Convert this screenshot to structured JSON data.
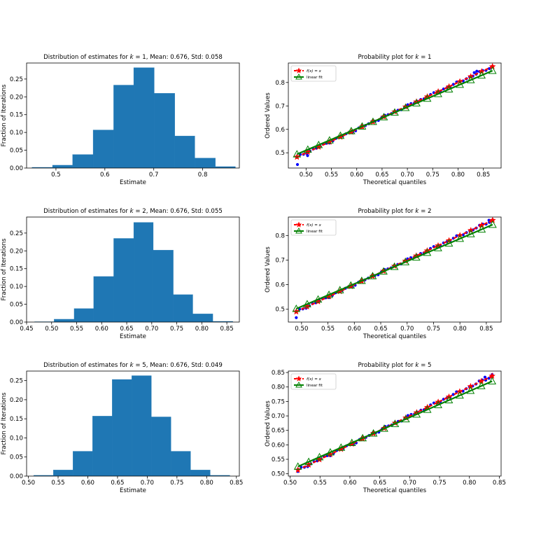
{
  "chart_data": [
    {
      "type": "bar",
      "title": "Distribution of estimates for k = 1, Mean: 0.676, Std: 0.058",
      "title_pre": "Distribution of estimates for ",
      "title_k": "k",
      "title_post": " = 1, Mean: 0.676, Std: 0.058",
      "xlabel": "Estimate",
      "ylabel": "Fraction of Iterations",
      "xlim": [
        0.44,
        0.875
      ],
      "ylim": [
        0,
        0.295
      ],
      "xticks": [
        0.5,
        0.6,
        0.7,
        0.8
      ],
      "xtick_labels": [
        "0.5",
        "0.6",
        "0.7",
        "0.8"
      ],
      "yticks": [
        0,
        0.05,
        0.1,
        0.15,
        0.2,
        0.25
      ],
      "ytick_labels": [
        "0.00",
        "0.05",
        "0.10",
        "0.15",
        "0.20",
        "0.25"
      ],
      "bin_edges": [
        0.451,
        0.493,
        0.534,
        0.576,
        0.618,
        0.659,
        0.701,
        0.743,
        0.784,
        0.826,
        0.867
      ],
      "values": [
        0.002,
        0.008,
        0.038,
        0.107,
        0.233,
        0.282,
        0.21,
        0.09,
        0.028,
        0.004
      ],
      "color": "#1f77b4"
    },
    {
      "type": "scatter",
      "title": "Probability plot for k = 1",
      "title_pre": "Probability plot for ",
      "title_k": "k",
      "title_post": " = 1",
      "xlabel": "Theoretical quantiles",
      "ylabel": "Ordered Values",
      "xlim": [
        0.465,
        0.885
      ],
      "ylim": [
        0.435,
        0.883
      ],
      "xticks": [
        0.5,
        0.55,
        0.6,
        0.65,
        0.7,
        0.75,
        0.8,
        0.85
      ],
      "xtick_labels": [
        "0.50",
        "0.55",
        "0.60",
        "0.65",
        "0.70",
        "0.75",
        "0.80",
        "0.85"
      ],
      "yticks": [
        0.5,
        0.6,
        0.7,
        0.8
      ],
      "ytick_labels": [
        "0.5",
        "0.6",
        "0.7",
        "0.8"
      ],
      "range": [
        0.482,
        0.868
      ],
      "outliers": [
        [
          0.483,
          0.45
        ],
        [
          0.503,
          0.488
        ],
        [
          0.832,
          0.842
        ],
        [
          0.837,
          0.848
        ]
      ],
      "legend": [
        "f(x) = x",
        "linear fit"
      ],
      "colors": {
        "points": "#0000ff",
        "identity": "#ff0000",
        "fit": "#008000"
      }
    },
    {
      "type": "bar",
      "title": "Distribution of estimates for k = 2, Mean: 0.676, Std: 0.055",
      "title_pre": "Distribution of estimates for ",
      "title_k": "k",
      "title_post": " = 2, Mean: 0.676, Std: 0.055",
      "xlabel": "Estimate",
      "ylabel": "Fraction of Iterations",
      "xlim": [
        0.45,
        0.875
      ],
      "ylim": [
        0,
        0.295
      ],
      "xticks": [
        0.45,
        0.5,
        0.55,
        0.6,
        0.65,
        0.7,
        0.75,
        0.8,
        0.85
      ],
      "xtick_labels": [
        "0.45",
        "0.50",
        "0.55",
        "0.60",
        "0.65",
        "0.70",
        "0.75",
        "0.80",
        "0.85"
      ],
      "yticks": [
        0,
        0.05,
        0.1,
        0.15,
        0.2,
        0.25
      ],
      "ytick_labels": [
        "0.00",
        "0.05",
        "0.10",
        "0.15",
        "0.20",
        "0.25"
      ],
      "bin_edges": [
        0.466,
        0.505,
        0.545,
        0.584,
        0.624,
        0.664,
        0.703,
        0.743,
        0.782,
        0.822,
        0.862
      ],
      "values": [
        0.001,
        0.008,
        0.038,
        0.128,
        0.235,
        0.28,
        0.202,
        0.077,
        0.023,
        0.002
      ],
      "color": "#1f77b4"
    },
    {
      "type": "scatter",
      "title": "Probability plot for k = 2",
      "title_pre": "Probability plot for ",
      "title_k": "k",
      "title_post": " = 2",
      "xlabel": "Theoretical quantiles",
      "ylabel": "Ordered Values",
      "xlim": [
        0.475,
        0.878
      ],
      "ylim": [
        0.448,
        0.875
      ],
      "xticks": [
        0.5,
        0.55,
        0.6,
        0.65,
        0.7,
        0.75,
        0.8,
        0.85
      ],
      "xtick_labels": [
        "0.50",
        "0.55",
        "0.60",
        "0.65",
        "0.70",
        "0.75",
        "0.80",
        "0.85"
      ],
      "yticks": [
        0.5,
        0.6,
        0.7,
        0.8
      ],
      "ytick_labels": [
        "0.5",
        "0.6",
        "0.7",
        "0.8"
      ],
      "range": [
        0.49,
        0.862
      ],
      "outliers": [
        [
          0.49,
          0.466
        ],
        [
          0.855,
          0.862
        ]
      ],
      "legend": [
        "f(x) = x",
        "linear fit"
      ],
      "colors": {
        "points": "#0000ff",
        "identity": "#ff0000",
        "fit": "#008000"
      }
    },
    {
      "type": "bar",
      "title": "Distribution of estimates for k = 5, Mean: 0.676, Std: 0.049",
      "title_pre": "Distribution of estimates for ",
      "title_k": "k",
      "title_post": " = 5, Mean: 0.676, Std: 0.049",
      "xlabel": "Estimate",
      "ylabel": "Fraction of Iterations",
      "xlim": [
        0.497,
        0.855
      ],
      "ylim": [
        0,
        0.275
      ],
      "xticks": [
        0.5,
        0.55,
        0.6,
        0.65,
        0.7,
        0.75,
        0.8,
        0.85
      ],
      "xtick_labels": [
        "0.50",
        "0.55",
        "0.60",
        "0.65",
        "0.70",
        "0.75",
        "0.80",
        "0.85"
      ],
      "yticks": [
        0,
        0.05,
        0.1,
        0.15,
        0.2,
        0.25
      ],
      "ytick_labels": [
        "0.00",
        "0.05",
        "0.10",
        "0.15",
        "0.20",
        "0.25"
      ],
      "bin_edges": [
        0.509,
        0.542,
        0.575,
        0.608,
        0.641,
        0.674,
        0.707,
        0.74,
        0.773,
        0.806,
        0.839
      ],
      "values": [
        0.002,
        0.016,
        0.065,
        0.157,
        0.253,
        0.263,
        0.155,
        0.065,
        0.016,
        0.002
      ],
      "color": "#1f77b4"
    },
    {
      "type": "scatter",
      "title": "Probability plot for k = 5",
      "title_pre": "Probability plot for ",
      "title_k": "k",
      "title_post": " = 5",
      "xlabel": "Theoretical quantiles",
      "ylabel": "Ordered Values",
      "xlim": [
        0.497,
        0.853
      ],
      "ylim": [
        0.492,
        0.855
      ],
      "xticks": [
        0.5,
        0.55,
        0.6,
        0.65,
        0.7,
        0.75,
        0.8,
        0.85
      ],
      "xtick_labels": [
        "0.50",
        "0.55",
        "0.60",
        "0.65",
        "0.70",
        "0.75",
        "0.80",
        "0.85"
      ],
      "yticks": [
        0.5,
        0.55,
        0.6,
        0.65,
        0.7,
        0.75,
        0.8,
        0.85
      ],
      "ytick_labels": [
        "0.50",
        "0.55",
        "0.60",
        "0.65",
        "0.70",
        "0.75",
        "0.80",
        "0.85"
      ],
      "range": [
        0.513,
        0.838
      ],
      "outliers": [
        [
          0.513,
          0.508
        ],
        [
          0.826,
          0.834
        ],
        [
          0.838,
          0.843
        ]
      ],
      "legend": [
        "f(x) = x",
        "linear fit"
      ],
      "colors": {
        "points": "#0000ff",
        "identity": "#ff0000",
        "fit": "#008000"
      }
    }
  ]
}
